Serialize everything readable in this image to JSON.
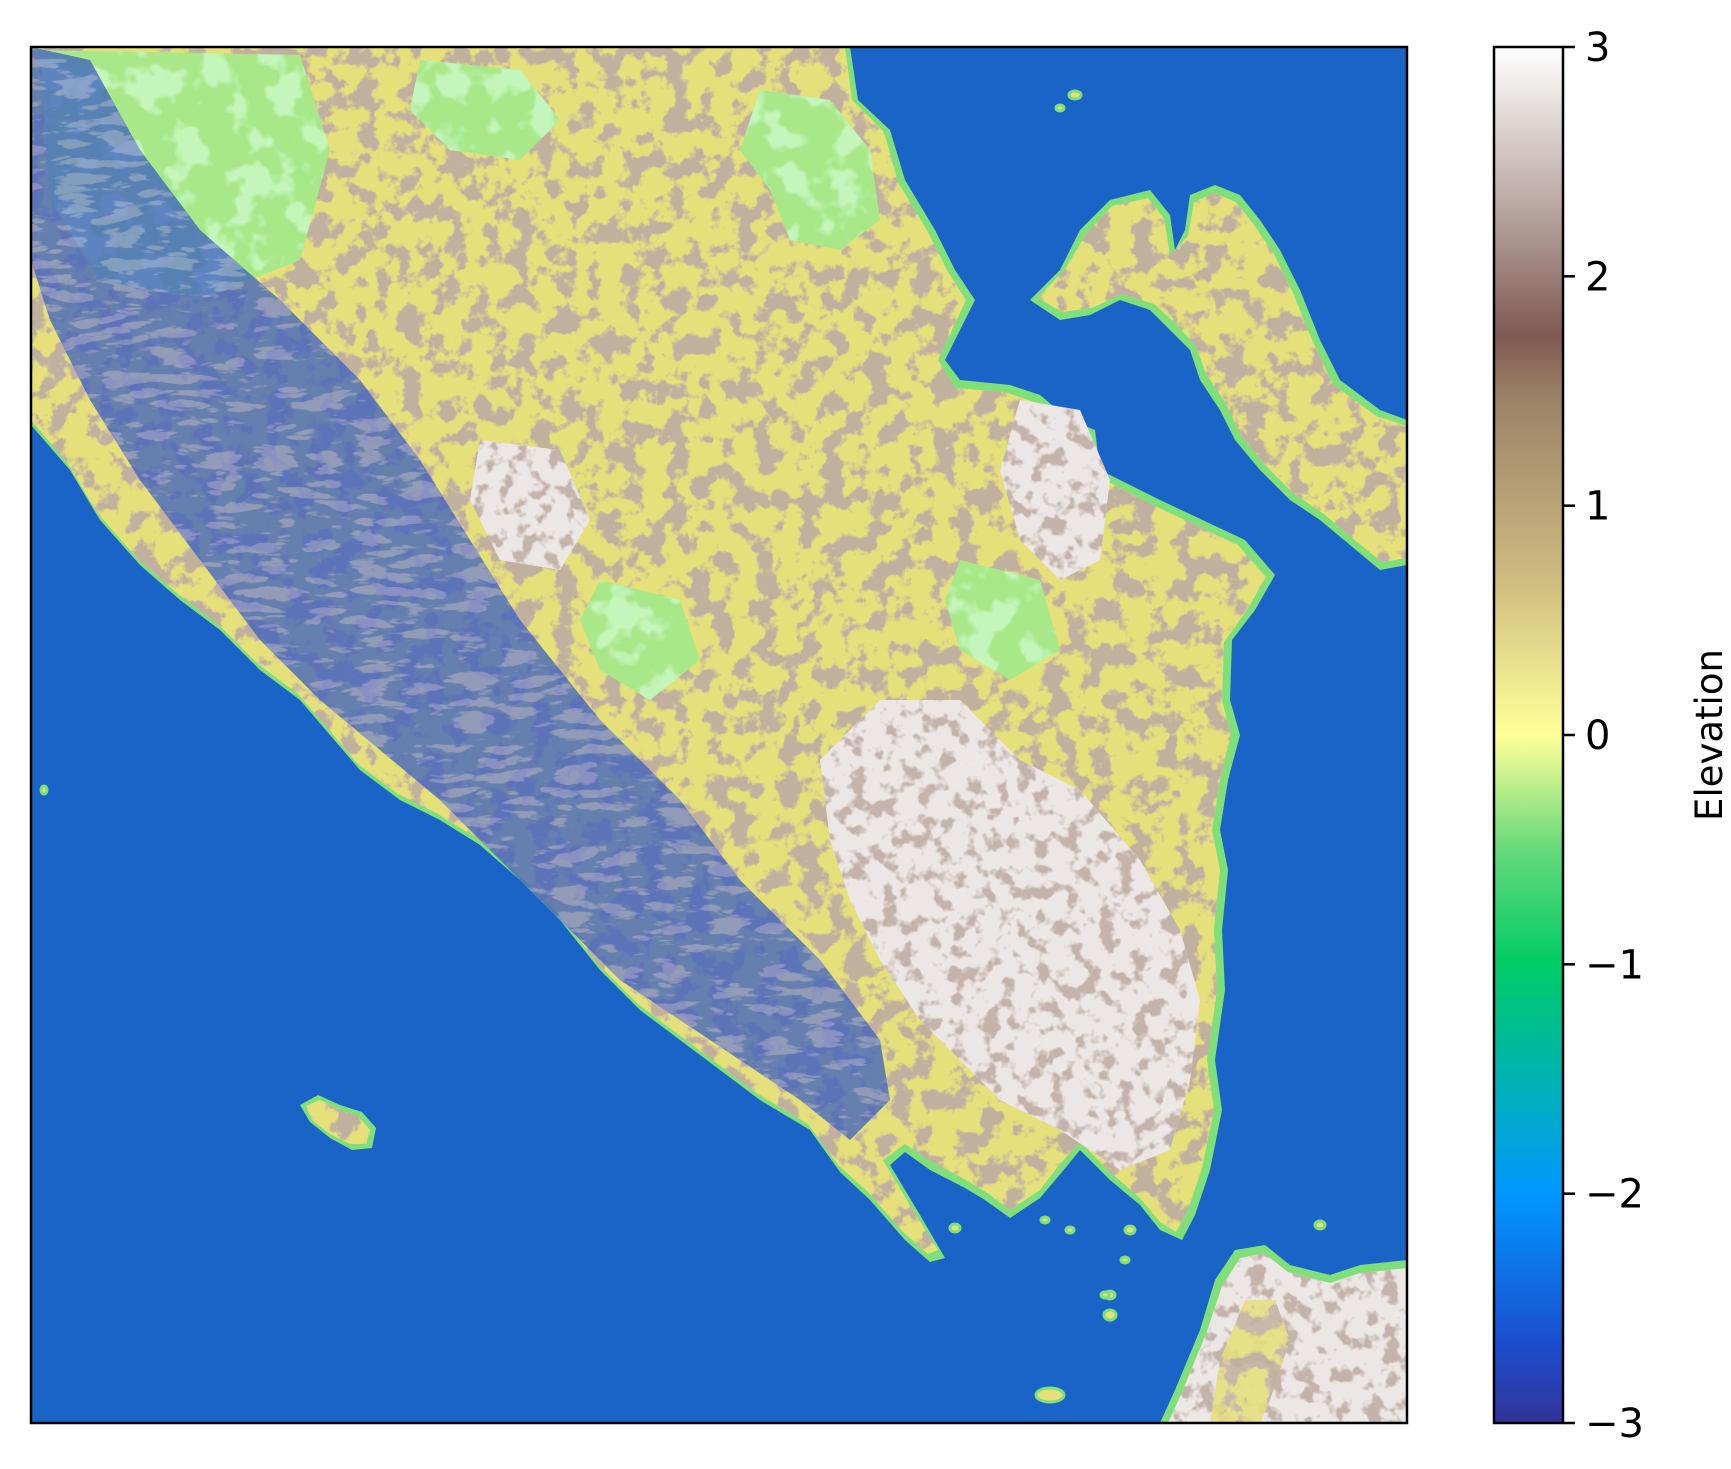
{
  "colorbar": {
    "label": "Elevation",
    "ticks": [
      {
        "value": 3,
        "label": "3"
      },
      {
        "value": 2,
        "label": "2"
      },
      {
        "value": 1,
        "label": "1"
      },
      {
        "value": 0,
        "label": "0"
      },
      {
        "value": -1,
        "label": "−1"
      },
      {
        "value": -2,
        "label": "−2"
      },
      {
        "value": -3,
        "label": "−3"
      }
    ],
    "range": [
      -3,
      3
    ],
    "colormap": "terrain",
    "colors": [
      "#333399",
      "#0099ff",
      "#00cc66",
      "#99e580",
      "#ffff99",
      "#997f66",
      "#ffffff"
    ]
  },
  "map": {
    "sea_color": "#1a64c8",
    "lowland_color": "#e6e07a",
    "highland_color": "#8a6e5a",
    "peak_color": "#f0ecec",
    "valley_color": "#2f3c9e",
    "coast_color": "#7fe07a"
  }
}
